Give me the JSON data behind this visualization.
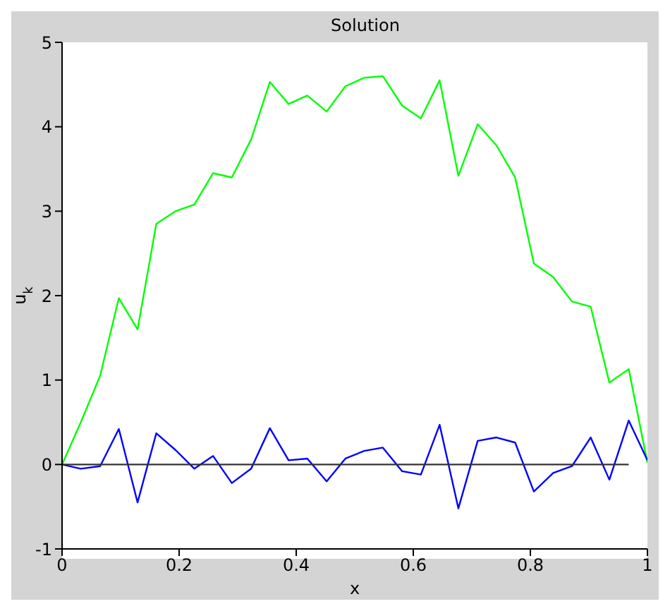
{
  "chart_data": {
    "type": "line",
    "title": "Solution",
    "xlabel": "x",
    "ylabel": "u$_{k}$",
    "x": [
      0,
      0.032,
      0.065,
      0.097,
      0.129,
      0.161,
      0.194,
      0.226,
      0.258,
      0.29,
      0.323,
      0.355,
      0.387,
      0.419,
      0.452,
      0.484,
      0.516,
      0.548,
      0.581,
      0.613,
      0.645,
      0.677,
      0.71,
      0.742,
      0.774,
      0.806,
      0.839,
      0.871,
      0.903,
      0.935,
      0.968,
      1
    ],
    "series": [
      {
        "color": "#00ff00",
        "values": [
          0,
          0.5,
          1.05,
          1.97,
          1.6,
          2.85,
          3.0,
          3.08,
          3.45,
          3.4,
          3.85,
          4.53,
          4.27,
          4.37,
          4.18,
          4.48,
          4.58,
          4.6,
          4.25,
          4.1,
          4.55,
          3.42,
          4.03,
          3.78,
          3.4,
          2.38,
          2.22,
          1.93,
          1.87,
          0.97,
          1.13,
          0.02
        ]
      },
      {
        "color": "#0000ff",
        "values": [
          0,
          -0.05,
          -0.02,
          0.42,
          -0.45,
          0.37,
          0.17,
          -0.05,
          0.1,
          -0.22,
          -0.05,
          0.43,
          0.05,
          0.07,
          -0.2,
          0.07,
          0.16,
          0.2,
          -0.08,
          -0.12,
          0.47,
          -0.52,
          0.28,
          0.32,
          0.26,
          -0.32,
          -0.1,
          -0.02,
          0.32,
          -0.18,
          0.52,
          0.05
        ]
      },
      {
        "color": "#333333",
        "x": [
          0,
          0.968
        ],
        "values": [
          0,
          0
        ]
      }
    ],
    "xlim": [
      0,
      1
    ],
    "xticks": [
      0,
      0.2,
      0.4,
      0.6,
      0.8,
      1
    ],
    "ylim": [
      -1,
      5
    ],
    "yticks": [
      -1,
      0,
      1,
      2,
      3,
      4,
      5
    ],
    "marker": "none",
    "line_style": "solid"
  }
}
